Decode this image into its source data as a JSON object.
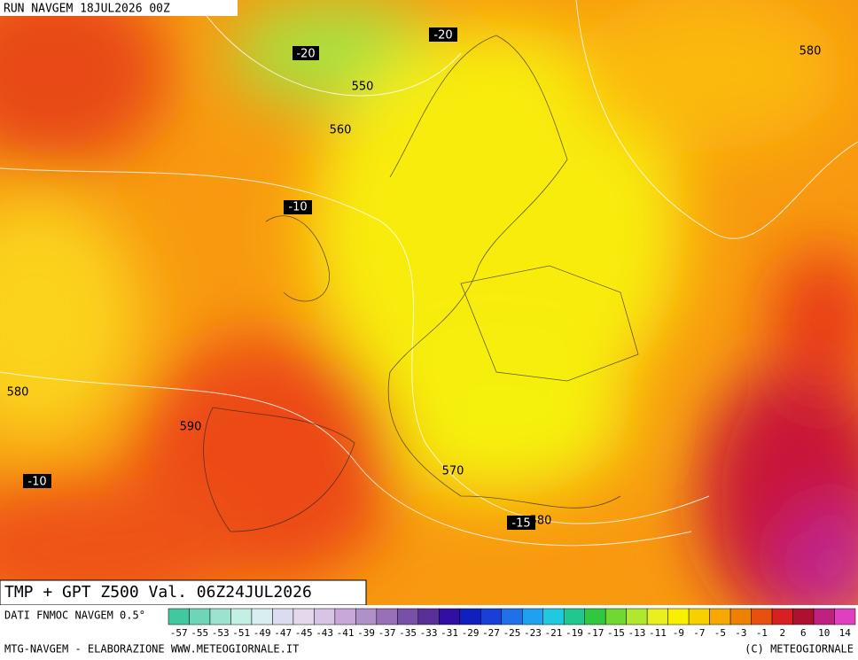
{
  "header": {
    "run": "RUN NAVGEM 18JUL2026 00Z"
  },
  "map_labels": [
    "-20",
    "-20",
    "550",
    "560",
    "580",
    "-10",
    "580",
    "590",
    "-10",
    "570",
    "-15",
    "580"
  ],
  "title": "TMP + GPT Z500 Val. 06Z24JUL2026",
  "source": "DATI FNMOC NAVGEM 0.5°",
  "colorbar": {
    "colors": [
      "#40c8a0",
      "#6dd6b8",
      "#9be3cf",
      "#c4efe3",
      "#d8eef0",
      "#dcdcf0",
      "#e4d8ec",
      "#d8c4e4",
      "#c8a8d8",
      "#b090c8",
      "#9870b8",
      "#7850a8",
      "#583098",
      "#3010a0",
      "#1020c0",
      "#1840d8",
      "#2070e8",
      "#20a0f0",
      "#20c8e0",
      "#20c890",
      "#30c840",
      "#70d830",
      "#b0e830",
      "#e8f020",
      "#f8f000",
      "#f8d000",
      "#f8a800",
      "#f08000",
      "#e85010",
      "#d82020",
      "#b01030",
      "#c02080",
      "#e040c0"
    ],
    "labels": [
      "-57",
      "-55",
      "-53",
      "-51",
      "-49",
      "-47",
      "-45",
      "-43",
      "-41",
      "-39",
      "-37",
      "-35",
      "-33",
      "-31",
      "-29",
      "-27",
      "-25",
      "-23",
      "-21",
      "-19",
      "-17",
      "-15",
      "-13",
      "-11",
      "-9",
      "-7",
      "-5",
      "-3",
      "-1",
      "2",
      "6",
      "10",
      "14"
    ]
  },
  "footer": {
    "left": "MTG-NAVGEM - ELABORAZIONE WWW.METEOGIORNALE.IT",
    "right": "(C) METEOGIORNALE"
  }
}
